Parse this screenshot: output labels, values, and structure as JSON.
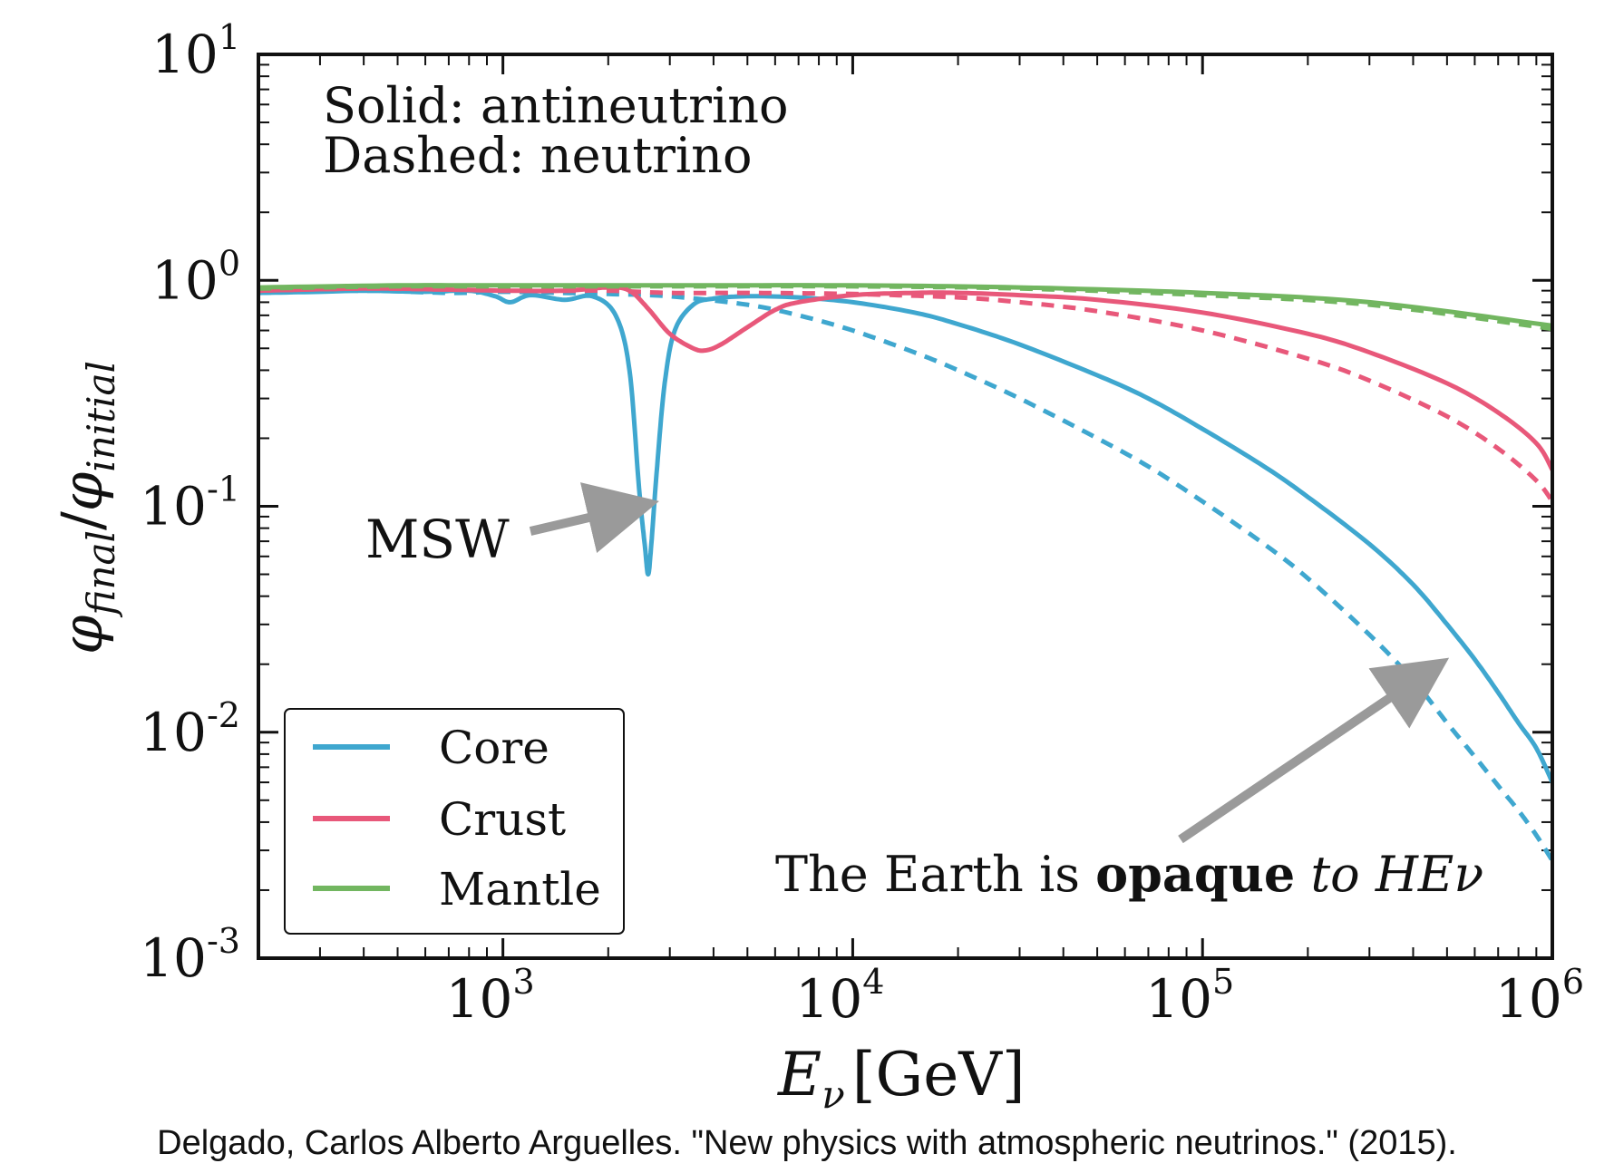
{
  "chart_data": {
    "type": "line",
    "x_scale": "log",
    "y_scale": "log",
    "xlim": [
      200,
      1000000
    ],
    "ylim": [
      0.001,
      10
    ],
    "x_ticks": [
      {
        "value": 1000,
        "base": "10",
        "exp": "3"
      },
      {
        "value": 10000,
        "base": "10",
        "exp": "4"
      },
      {
        "value": 100000,
        "base": "10",
        "exp": "5"
      },
      {
        "value": 1000000,
        "base": "10",
        "exp": "6"
      }
    ],
    "y_ticks": [
      {
        "value": 10,
        "base": "10",
        "exp": "1"
      },
      {
        "value": 1,
        "base": "10",
        "exp": "0"
      },
      {
        "value": 0.1,
        "base": "10",
        "exp": "-1"
      },
      {
        "value": 0.01,
        "base": "10",
        "exp": "-2"
      },
      {
        "value": 0.001,
        "base": "10",
        "exp": "-3"
      }
    ],
    "xlabel": {
      "main": "E",
      "sub": "ν",
      "unit": "[GeV]"
    },
    "ylabel": {
      "a": "φ",
      "a_sub": "final",
      "sep": "/",
      "b": "φ",
      "b_sub": "initial"
    },
    "style_note_line1": "Solid: antineutrino",
    "style_note_line2": "Dashed: neutrino",
    "annotations": {
      "msw": "MSW",
      "opaque_pre": "The Earth is ",
      "opaque_bold": "opaque",
      "opaque_post": " to HEν"
    },
    "legend": {
      "placement": "lower-left",
      "entries": [
        {
          "label": "Core",
          "color": "#3fa7cf"
        },
        {
          "label": "Crust",
          "color": "#e8587a"
        },
        {
          "label": "Mantle",
          "color": "#72b660"
        }
      ]
    },
    "series": [
      {
        "name": "Core",
        "style": "solid",
        "color": "#3fa7cf",
        "x": [
          200,
          300,
          400,
          600,
          800,
          950,
          1050,
          1200,
          1500,
          1800,
          2100,
          2300,
          2450,
          2550,
          2600,
          2650,
          2750,
          2900,
          3100,
          3500,
          4000,
          5000,
          7000,
          10000,
          15000,
          20000,
          30000,
          50000,
          70000,
          100000,
          150000,
          200000,
          300000,
          400000,
          500000,
          600000,
          700000,
          800000,
          900000,
          1000000
        ],
        "y": [
          0.88,
          0.89,
          0.9,
          0.89,
          0.9,
          0.85,
          0.8,
          0.86,
          0.82,
          0.85,
          0.7,
          0.4,
          0.12,
          0.065,
          0.05,
          0.065,
          0.14,
          0.35,
          0.6,
          0.78,
          0.83,
          0.85,
          0.84,
          0.8,
          0.72,
          0.64,
          0.52,
          0.38,
          0.3,
          0.22,
          0.15,
          0.11,
          0.068,
          0.045,
          0.03,
          0.021,
          0.015,
          0.011,
          0.0085,
          0.006
        ]
      },
      {
        "name": "Core",
        "style": "dashed",
        "color": "#3fa7cf",
        "x": [
          200,
          400,
          700,
          1000,
          1500,
          2000,
          3000,
          5000,
          7000,
          10000,
          15000,
          20000,
          30000,
          50000,
          70000,
          100000,
          150000,
          200000,
          300000,
          400000,
          500000,
          600000,
          700000,
          800000,
          900000,
          1000000
        ],
        "y": [
          0.88,
          0.9,
          0.88,
          0.89,
          0.88,
          0.87,
          0.85,
          0.78,
          0.7,
          0.6,
          0.48,
          0.4,
          0.3,
          0.2,
          0.15,
          0.105,
          0.068,
          0.048,
          0.027,
          0.017,
          0.011,
          0.0078,
          0.0058,
          0.0045,
          0.0035,
          0.0027
        ]
      },
      {
        "name": "Crust",
        "style": "solid",
        "color": "#e8587a",
        "x": [
          200,
          400,
          700,
          1000,
          1500,
          2000,
          2300,
          2600,
          3000,
          3500,
          3800,
          4200,
          5000,
          6000,
          7000,
          10000,
          15000,
          20000,
          30000,
          50000,
          100000,
          200000,
          300000,
          500000,
          700000,
          900000,
          1000000
        ],
        "y": [
          0.9,
          0.92,
          0.91,
          0.9,
          0.9,
          0.93,
          0.9,
          0.75,
          0.58,
          0.5,
          0.49,
          0.52,
          0.62,
          0.74,
          0.8,
          0.86,
          0.88,
          0.88,
          0.86,
          0.82,
          0.72,
          0.58,
          0.48,
          0.35,
          0.26,
          0.19,
          0.145
        ]
      },
      {
        "name": "Crust",
        "style": "dashed",
        "color": "#e8587a",
        "x": [
          200,
          400,
          700,
          1000,
          1500,
          2000,
          3000,
          5000,
          10000,
          20000,
          30000,
          50000,
          100000,
          200000,
          300000,
          500000,
          700000,
          900000,
          1000000
        ],
        "y": [
          0.9,
          0.92,
          0.91,
          0.91,
          0.9,
          0.9,
          0.88,
          0.88,
          0.87,
          0.84,
          0.8,
          0.73,
          0.6,
          0.45,
          0.36,
          0.25,
          0.18,
          0.13,
          0.105
        ]
      },
      {
        "name": "Mantle",
        "style": "solid",
        "color": "#72b660",
        "x": [
          200,
          500,
          1000,
          3000,
          10000,
          30000,
          100000,
          300000,
          1000000
        ],
        "y": [
          0.93,
          0.95,
          0.95,
          0.95,
          0.95,
          0.93,
          0.88,
          0.8,
          0.63
        ]
      },
      {
        "name": "Mantle",
        "style": "dashed",
        "color": "#72b660",
        "x": [
          200,
          500,
          1000,
          3000,
          10000,
          30000,
          100000,
          300000,
          1000000
        ],
        "y": [
          0.92,
          0.94,
          0.94,
          0.94,
          0.94,
          0.92,
          0.86,
          0.78,
          0.61
        ]
      }
    ]
  },
  "citation": "Delgado, Carlos Alberto Arguelles. \"New physics with atmospheric neutrinos.\" (2015)."
}
